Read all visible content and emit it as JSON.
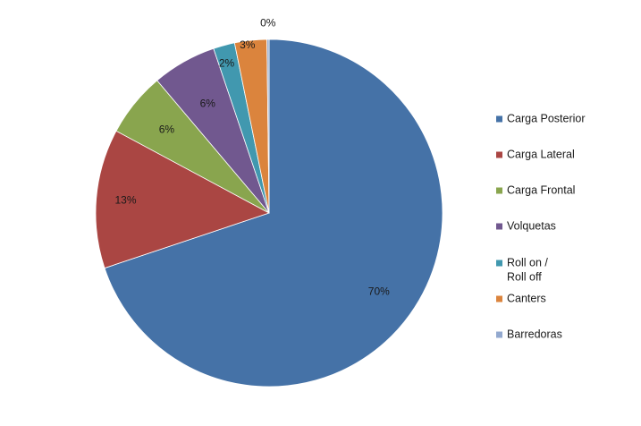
{
  "chart_data": {
    "type": "pie",
    "categories": [
      "Carga Posterior",
      "Carga Lateral",
      "Carga Frontal",
      "Volquetas",
      "Roll on / Roll off",
      "Canters",
      "Barredoras"
    ],
    "legend_lines": [
      [
        "Carga Posterior"
      ],
      [
        "Carga Lateral"
      ],
      [
        "Carga Frontal"
      ],
      [
        "Volquetas"
      ],
      [
        "Roll on /",
        "Roll off"
      ],
      [
        "Canters"
      ],
      [
        "Barredoras"
      ]
    ],
    "values": [
      70,
      13,
      6,
      6,
      2,
      3,
      0.2
    ],
    "labels": [
      "70%",
      "13%",
      "6%",
      "6%",
      "2%",
      "3%",
      "0%"
    ],
    "colors": [
      "#4572A7",
      "#AA4643",
      "#89A54E",
      "#71588F",
      "#4198AF",
      "#DB843D",
      "#93A9CF"
    ],
    "start": "top, clockwise",
    "legend_position": "right"
  }
}
